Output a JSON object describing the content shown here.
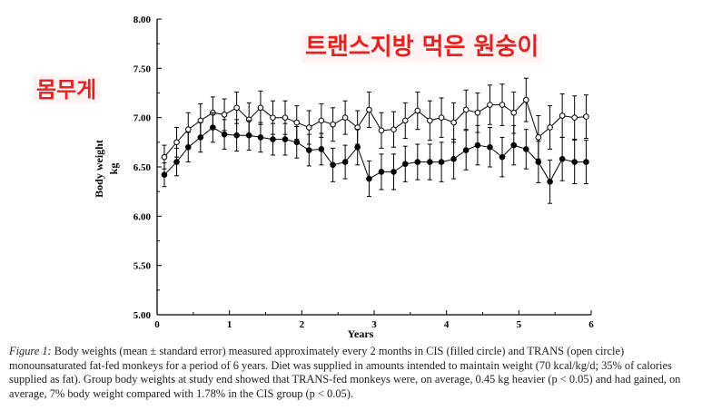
{
  "colors": {
    "annotation": "#e8211f",
    "annotation_bg": "#fff3f3",
    "axis": "#000000"
  },
  "annotations": {
    "title_korean": "트랜스지방 먹은 원숭이",
    "ylabel_korean": "몸무게"
  },
  "caption": {
    "lead": "Figure 1:",
    "text": " Body weights (mean ± standard error) measured approximately every 2 months in CIS (filled circle) and TRANS (open circle) monounsaturated fat-fed monkeys for a period of 6 years. Diet was supplied in amounts intended to maintain weight (70 kcal/kg/d; 35% of calories supplied as fat). Group body weights at study end showed that TRANS-fed monkeys were, on average, 0.45 kg heavier (p < 0.05) and had gained, on average, 7% body weight compared with 1.78% in the CIS group (p < 0.05)."
  },
  "chart_data": {
    "type": "line",
    "title": "",
    "xlabel": "Years",
    "ylabel": "Body weight",
    "ylabel_unit": "kg",
    "xlim": [
      0,
      6
    ],
    "ylim": [
      5.0,
      8.0
    ],
    "xticks": [
      "0",
      "1",
      "2",
      "3",
      "4",
      "5",
      "6"
    ],
    "yticks": [
      "5.00",
      "5.50",
      "6.00",
      "6.50",
      "7.00",
      "7.50",
      "8.00"
    ],
    "x": [
      0.1,
      0.27,
      0.43,
      0.6,
      0.77,
      0.93,
      1.1,
      1.27,
      1.43,
      1.6,
      1.77,
      1.93,
      2.1,
      2.27,
      2.43,
      2.6,
      2.77,
      2.93,
      3.1,
      3.27,
      3.43,
      3.6,
      3.77,
      3.93,
      4.1,
      4.27,
      4.43,
      4.6,
      4.77,
      4.93,
      5.1,
      5.27,
      5.43,
      5.6,
      5.77,
      5.93
    ],
    "series": [
      {
        "name": "TRANS",
        "marker": "open circle",
        "values": [
          6.6,
          6.75,
          6.88,
          6.97,
          7.05,
          7.03,
          7.1,
          6.98,
          7.1,
          7.0,
          7.0,
          6.95,
          6.9,
          6.97,
          6.93,
          7.0,
          6.9,
          7.08,
          6.87,
          6.88,
          6.97,
          7.07,
          6.97,
          7.0,
          6.95,
          7.08,
          7.05,
          7.13,
          7.13,
          7.05,
          7.18,
          6.8,
          6.9,
          7.02,
          7.0,
          7.01
        ],
        "errors": [
          0.12,
          0.15,
          0.17,
          0.17,
          0.16,
          0.16,
          0.16,
          0.17,
          0.17,
          0.17,
          0.17,
          0.17,
          0.17,
          0.17,
          0.17,
          0.17,
          0.17,
          0.18,
          0.18,
          0.18,
          0.18,
          0.19,
          0.2,
          0.2,
          0.2,
          0.2,
          0.2,
          0.2,
          0.21,
          0.21,
          0.22,
          0.22,
          0.22,
          0.22,
          0.22,
          0.22
        ]
      },
      {
        "name": "CIS",
        "marker": "filled circle",
        "values": [
          6.42,
          6.55,
          6.7,
          6.8,
          6.9,
          6.83,
          6.82,
          6.82,
          6.8,
          6.78,
          6.78,
          6.75,
          6.67,
          6.68,
          6.52,
          6.55,
          6.7,
          6.38,
          6.45,
          6.45,
          6.53,
          6.55,
          6.55,
          6.55,
          6.58,
          6.67,
          6.72,
          6.7,
          6.6,
          6.72,
          6.68,
          6.55,
          6.35,
          6.58,
          6.55,
          6.55
        ],
        "errors": [
          0.12,
          0.14,
          0.15,
          0.15,
          0.15,
          0.15,
          0.16,
          0.15,
          0.15,
          0.16,
          0.16,
          0.16,
          0.16,
          0.16,
          0.17,
          0.17,
          0.18,
          0.18,
          0.18,
          0.18,
          0.18,
          0.18,
          0.18,
          0.2,
          0.2,
          0.2,
          0.2,
          0.2,
          0.2,
          0.2,
          0.2,
          0.21,
          0.22,
          0.22,
          0.22,
          0.22
        ]
      }
    ]
  }
}
